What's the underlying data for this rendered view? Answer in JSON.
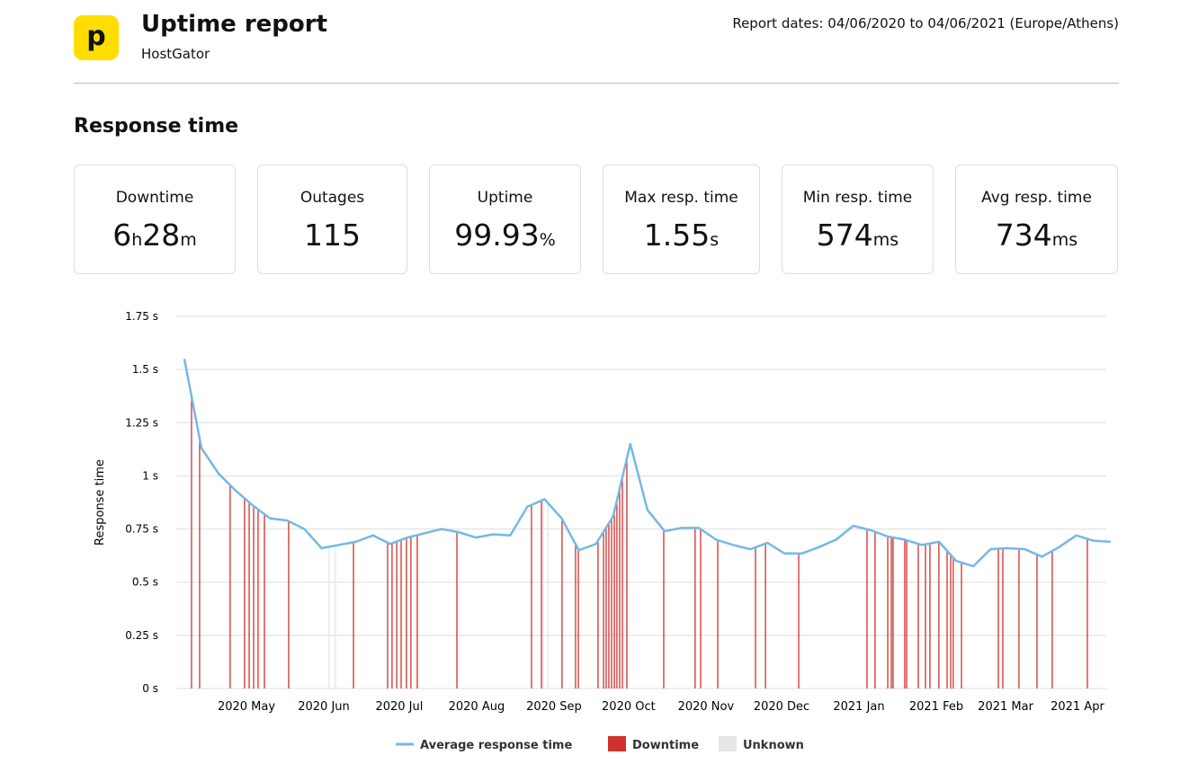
{
  "header": {
    "title": "Uptime report",
    "subtitle": "HostGator",
    "logo": "p",
    "report_dates": "Report dates: 04/06/2020 to 04/06/2021 (Europe/Athens)"
  },
  "section_title": "Response time",
  "stats": [
    {
      "label": "Downtime",
      "value": [
        "6",
        "h",
        "28",
        "m"
      ]
    },
    {
      "label": "Outages",
      "value": [
        "115"
      ]
    },
    {
      "label": "Uptime",
      "value": [
        "99.93",
        "%"
      ]
    },
    {
      "label": "Max resp. time",
      "value": [
        "1.55",
        "s"
      ]
    },
    {
      "label": "Min resp. time",
      "value": [
        "574",
        "ms"
      ]
    },
    {
      "label": "Avg resp. time",
      "value": [
        "734",
        "ms"
      ]
    }
  ],
  "chart_data": {
    "type": "line",
    "y_label": "Response time",
    "ylim": [
      0,
      1.75
    ],
    "yticks": [
      {
        "value": 0,
        "label": "0 s"
      },
      {
        "value": 0.25,
        "label": "0.25 s"
      },
      {
        "value": 0.5,
        "label": "0.5 s"
      },
      {
        "value": 0.75,
        "label": "0.75 s"
      },
      {
        "value": 1,
        "label": "1 s"
      },
      {
        "value": 1.25,
        "label": "1.25 s"
      },
      {
        "value": 1.5,
        "label": "1.5 s"
      },
      {
        "value": 1.75,
        "label": "1.75 s"
      }
    ],
    "xlim": [
      -0.47,
      53.75
    ],
    "xticks": [
      {
        "value": 3.62,
        "label": "2020 May"
      },
      {
        "value": 8.13,
        "label": "2020 Jun"
      },
      {
        "value": 12.53,
        "label": "2020 Jul"
      },
      {
        "value": 17.04,
        "label": "2020 Aug"
      },
      {
        "value": 21.55,
        "label": "2020 Sep"
      },
      {
        "value": 25.9,
        "label": "2020 Oct"
      },
      {
        "value": 30.41,
        "label": "2020 Nov"
      },
      {
        "value": 34.82,
        "label": "2020 Dec"
      },
      {
        "value": 39.33,
        "label": "2021 Jan"
      },
      {
        "value": 43.84,
        "label": "2021 Feb"
      },
      {
        "value": 47.88,
        "label": "2021 Mar"
      },
      {
        "value": 52.07,
        "label": "2021 Apr"
      }
    ],
    "grid": true,
    "series": [
      {
        "name": "Average response time",
        "color": "#74b9e3",
        "values": [
          1.55,
          1.13,
          1.01,
          0.93,
          0.86,
          0.8,
          0.79,
          0.75,
          0.66,
          0.675,
          0.69,
          0.72,
          0.68,
          0.71,
          0.73,
          0.75,
          0.735,
          0.71,
          0.725,
          0.72,
          0.855,
          0.89,
          0.8,
          0.65,
          0.68,
          0.81,
          1.15,
          0.84,
          0.74,
          0.755,
          0.755,
          0.7,
          0.675,
          0.655,
          0.685,
          0.635,
          0.635,
          0.665,
          0.7,
          0.765,
          0.745,
          0.715,
          0.7,
          0.675,
          0.69,
          0.6,
          0.575,
          0.655,
          0.66,
          0.655,
          0.62,
          0.665,
          0.72,
          0.695,
          0.69
        ]
      }
    ],
    "downtime": {
      "name": "Downtime",
      "color": "#d0312d",
      "x": [
        0.42,
        0.89,
        2.67,
        3.51,
        3.78,
        4.04,
        4.3,
        4.67,
        6.08,
        9.86,
        11.85,
        12.11,
        12.38,
        12.64,
        12.95,
        13.21,
        13.58,
        15.89,
        20.24,
        20.82,
        22.02,
        22.81,
        22.97,
        24.12,
        24.44,
        24.59,
        24.75,
        24.91,
        25.07,
        25.22,
        25.38,
        25.54,
        25.8,
        27.95,
        29.78,
        30.1,
        31.1,
        33.3,
        33.88,
        35.82,
        39.8,
        40.27,
        41.01,
        41.22,
        41.32,
        42,
        42.11,
        42.79,
        43.21,
        43.47,
        43.99,
        44.47,
        44.68,
        44.83,
        45.31,
        47.46,
        47.72,
        48.66,
        49.71,
        50.6,
        52.65
      ]
    },
    "unknown": {
      "name": "Unknown",
      "color": "#e6e6e6",
      "x": [
        8.44,
        8.81,
        20.92,
        21.19
      ]
    }
  }
}
